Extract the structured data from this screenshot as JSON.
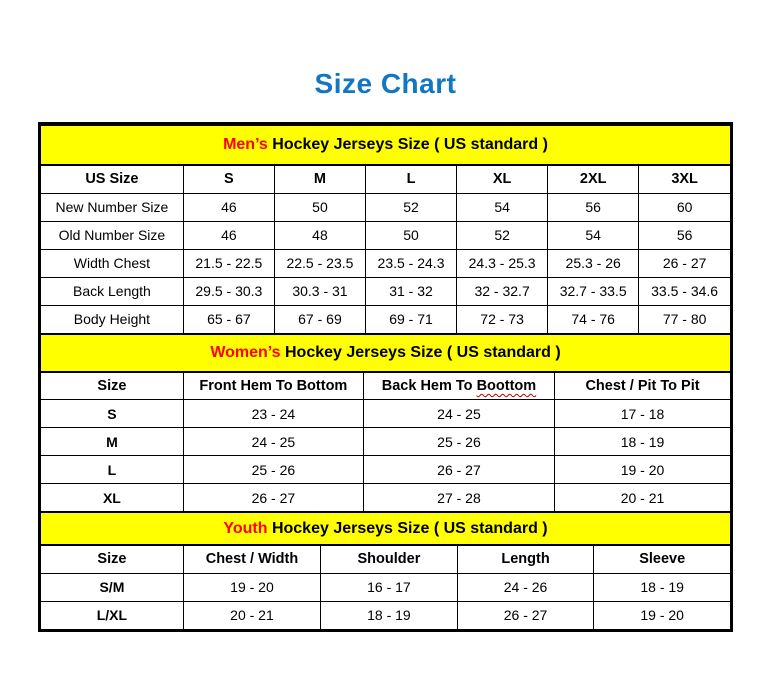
{
  "page": {
    "title": "Size Chart",
    "title_color": "#1276C2"
  },
  "colors": {
    "band_bg": "#FFFF00",
    "accent_red": "#FF0000",
    "border": "#000000",
    "spellcheck_underline": "#C00000"
  },
  "sections": [
    {
      "id": "mens",
      "title_accent": "Men’s",
      "title_rest": " Hockey Jerseys Size ( US standard )",
      "columns": [
        "US Size",
        "S",
        "M",
        "L",
        "XL",
        "2XL",
        "3XL"
      ],
      "rows": [
        {
          "label": "New Number Size",
          "values": [
            "46",
            "50",
            "52",
            "54",
            "56",
            "60"
          ]
        },
        {
          "label": "Old Number Size",
          "values": [
            "46",
            "48",
            "50",
            "52",
            "54",
            "56"
          ]
        },
        {
          "label": "Width Chest",
          "values": [
            "21.5 - 22.5",
            "22.5 - 23.5",
            "23.5 - 24.3",
            "24.3 - 25.3",
            "25.3 - 26",
            "26 - 27"
          ]
        },
        {
          "label": "Back Length",
          "values": [
            "29.5 - 30.3",
            "30.3 - 31",
            "31 - 32",
            "32 - 32.7",
            "32.7 - 33.5",
            "33.5 - 34.6"
          ]
        },
        {
          "label": "Body Height",
          "values": [
            "65 - 67",
            "67 - 69",
            "69 - 71",
            "72 - 73",
            "74 - 76",
            "77 - 80"
          ]
        }
      ]
    },
    {
      "id": "womens",
      "title_accent": "Women’s",
      "title_rest": " Hockey Jerseys Size ( US standard )",
      "columns": [
        "Size",
        "Front Hem To Bottom",
        "Back Hem To Boottom",
        "Chest / Pit To Pit"
      ],
      "misspelling": {
        "column_index": 2,
        "prefix": "Back Hem To ",
        "word": "Boottom"
      },
      "rows": [
        {
          "label": "S",
          "values": [
            "23 - 24",
            "24 - 25",
            "17 - 18"
          ]
        },
        {
          "label": "M",
          "values": [
            "24 - 25",
            "25 - 26",
            "18 - 19"
          ]
        },
        {
          "label": "L",
          "values": [
            "25 - 26",
            "26 - 27",
            "19 - 20"
          ]
        },
        {
          "label": "XL",
          "values": [
            "26 - 27",
            "27 - 28",
            "20 - 21"
          ]
        }
      ]
    },
    {
      "id": "youth",
      "title_accent": "Youth",
      "title_rest": " Hockey Jerseys Size ( US standard )",
      "columns": [
        "Size",
        "Chest / Width",
        "Shoulder",
        "Length",
        "Sleeve"
      ],
      "rows": [
        {
          "label": "S/M",
          "values": [
            "19 - 20",
            "16 - 17",
            "24 - 26",
            "18 - 19"
          ]
        },
        {
          "label": "L/XL",
          "values": [
            "20 - 21",
            "18 - 19",
            "26 - 27",
            "19 - 20"
          ]
        }
      ]
    }
  ]
}
